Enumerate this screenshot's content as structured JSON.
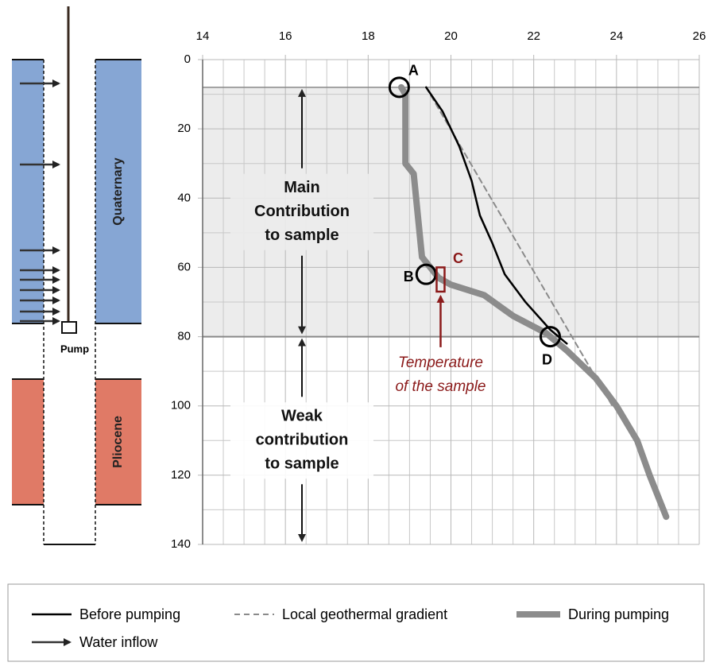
{
  "chart_data": {
    "type": "line",
    "xlim": [
      14,
      26
    ],
    "xticks": [
      14,
      16,
      18,
      20,
      22,
      24,
      26
    ],
    "xminor": [
      14.5,
      15,
      15.5,
      16.5,
      17,
      17.5,
      18.5,
      19,
      19.5,
      20.5,
      21,
      21.5,
      22.5,
      23,
      23.5,
      24.5,
      25,
      25.5
    ],
    "ylim": [
      0,
      140
    ],
    "yticks": [
      0,
      20,
      40,
      60,
      80,
      100,
      120,
      140
    ],
    "yminor": [
      10,
      30,
      50,
      70,
      90,
      110,
      130
    ],
    "y_inverted": true,
    "grid": true,
    "shaded_zone": [
      8,
      80
    ],
    "series": [
      {
        "name": "Before pumping",
        "color": "#000000",
        "style": "solid",
        "x": [
          19.4,
          19.8,
          20.2,
          20.5,
          20.7,
          21.0,
          21.3,
          21.8,
          22.4,
          22.8
        ],
        "values": [
          8,
          15,
          25,
          35,
          45,
          53,
          62,
          70,
          78,
          82
        ]
      },
      {
        "name": "Local geothermal gradient",
        "color": "#8a8a8a",
        "style": "dashed",
        "x": [
          19.4,
          23.9
        ],
        "values": [
          8,
          100
        ]
      },
      {
        "name": "During pumping",
        "color": "#8c8c8c",
        "style": "thick",
        "x": [
          18.8,
          18.9,
          18.9,
          19.1,
          19.2,
          19.3,
          19.5,
          19.7,
          20.0,
          20.8,
          21.5,
          22.3,
          22.8,
          23.5,
          24.0,
          24.5,
          24.8,
          25.2
        ],
        "values": [
          8,
          10,
          30,
          33,
          45,
          57,
          60,
          63,
          65,
          68,
          74,
          79,
          84,
          92,
          100,
          110,
          120,
          132
        ]
      }
    ],
    "points": [
      {
        "label": "A",
        "x": 18.75,
        "y": 8
      },
      {
        "label": "B",
        "x": 19.4,
        "y": 62
      },
      {
        "label": "D",
        "x": 22.4,
        "y": 80
      }
    ],
    "sample": {
      "label": "C",
      "x": 19.75,
      "y": [
        60,
        67
      ],
      "note": [
        "Temperature",
        "of the sample"
      ]
    },
    "annotations": [
      {
        "lines": [
          "Main",
          "Contribution",
          "to sample"
        ],
        "x": 16.4,
        "range": [
          8,
          80
        ]
      },
      {
        "lines": [
          "Weak",
          "contribution",
          "to sample"
        ],
        "x": 16.4,
        "range": [
          80,
          140
        ]
      }
    ]
  },
  "well": {
    "pump": "Pump",
    "upper_unit": "Quaternary",
    "lower_unit": "Pliocene",
    "legend_item": "Water inflow"
  }
}
